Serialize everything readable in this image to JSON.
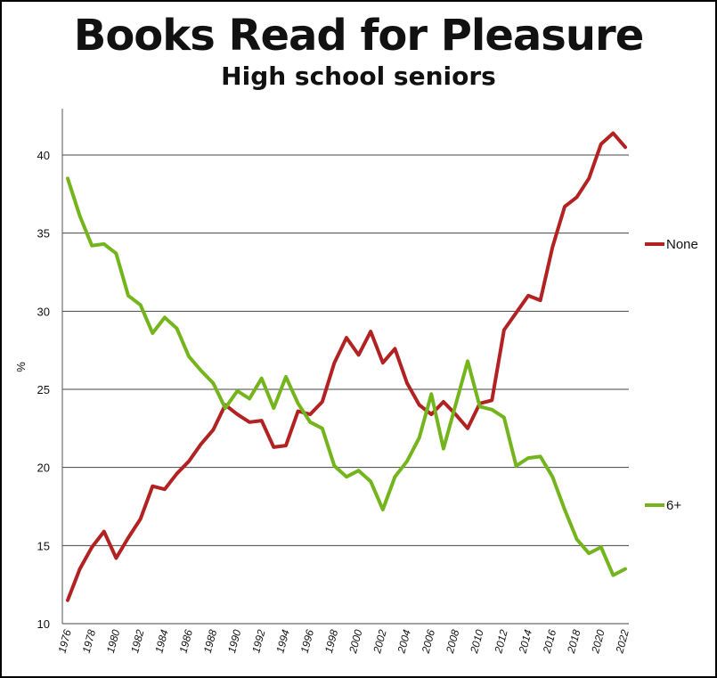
{
  "chart_data": {
    "type": "line",
    "title": "Books Read for Pleasure",
    "subtitle": "High school seniors",
    "xlabel": "",
    "ylabel": "%",
    "ylim": [
      10,
      43
    ],
    "yticks": [
      10,
      15,
      20,
      25,
      30,
      35,
      40
    ],
    "xlim": [
      1976,
      2022
    ],
    "xticks": [
      1976,
      1978,
      1980,
      1982,
      1984,
      1986,
      1988,
      1990,
      1992,
      1994,
      1996,
      1998,
      2000,
      2002,
      2004,
      2006,
      2008,
      2010,
      2012,
      2014,
      2016,
      2018,
      2020,
      2022
    ],
    "grid": "horizontal",
    "legend": "right",
    "x": [
      1976,
      1977,
      1978,
      1979,
      1980,
      1981,
      1982,
      1983,
      1984,
      1985,
      1986,
      1987,
      1988,
      1989,
      1990,
      1991,
      1992,
      1993,
      1994,
      1995,
      1996,
      1997,
      1998,
      1999,
      2000,
      2001,
      2002,
      2003,
      2004,
      2005,
      2006,
      2007,
      2008,
      2009,
      2010,
      2011,
      2012,
      2013,
      2014,
      2015,
      2016,
      2017,
      2018,
      2019,
      2020,
      2021,
      2022
    ],
    "series": [
      {
        "name": "None",
        "color": "#b22222",
        "values": [
          11.5,
          13.5,
          14.9,
          15.9,
          14.2,
          15.5,
          16.7,
          18.8,
          18.6,
          19.6,
          20.4,
          21.5,
          22.4,
          24.0,
          23.4,
          22.9,
          23.0,
          21.3,
          21.4,
          23.6,
          23.4,
          24.2,
          26.7,
          28.3,
          27.2,
          28.7,
          26.7,
          27.6,
          25.4,
          24.0,
          23.4,
          24.2,
          23.4,
          22.5,
          24.1,
          24.3,
          28.8,
          29.9,
          31.0,
          30.7,
          34.1,
          36.7,
          37.3,
          38.5,
          40.7,
          41.4,
          40.5
        ]
      },
      {
        "name": "6+",
        "color": "#74b51e",
        "values": [
          38.5,
          36.1,
          34.2,
          34.3,
          33.7,
          31.0,
          30.4,
          28.6,
          29.6,
          28.9,
          27.1,
          26.2,
          25.4,
          23.8,
          24.9,
          24.4,
          25.7,
          23.8,
          25.8,
          24.1,
          22.9,
          22.5,
          20.1,
          19.4,
          19.8,
          19.1,
          17.3,
          19.4,
          20.4,
          21.9,
          24.7,
          21.2,
          24.0,
          26.8,
          23.9,
          23.7,
          23.2,
          20.1,
          20.6,
          20.7,
          19.4,
          17.3,
          15.4,
          14.5,
          14.9,
          13.1,
          13.5
        ]
      }
    ]
  }
}
